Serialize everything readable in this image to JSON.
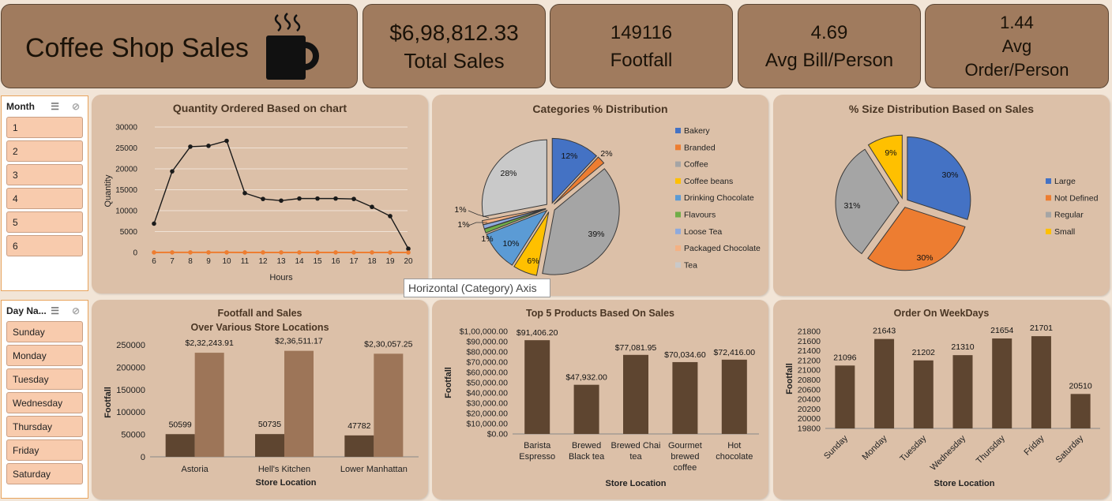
{
  "kpis": {
    "title": "Coffee Shop Sales",
    "cup_icon": "coffee-cup-icon",
    "total_sales_value": "$6,98,812.33",
    "total_sales_label": "Total Sales",
    "footfall_value": "149116",
    "footfall_label": "Footfall",
    "avg_bill_value": "4.69",
    "avg_bill_label": "Avg Bill/Person",
    "avg_order_value": "1.44",
    "avg_order_label1": "Avg",
    "avg_order_label2": "Order/Person"
  },
  "month_slicer": {
    "header": "Month",
    "items": [
      "1",
      "2",
      "3",
      "4",
      "5",
      "6"
    ]
  },
  "day_slicer": {
    "header": "Day Na...",
    "items": [
      "Sunday",
      "Monday",
      "Tuesday",
      "Wednesday",
      "Thursday",
      "Friday",
      "Saturday"
    ]
  },
  "tooltip": "Horizontal (Category) Axis",
  "colors": {
    "kpi_bg": "#a07b5e",
    "panel_bg": "#dcc0a8",
    "bar_dark": "#5e4530",
    "bar_light": "#9d7558",
    "line": "#1a1a1a",
    "line_orange": "#ed7d31"
  },
  "chart_data": [
    {
      "id": "quantity",
      "type": "line",
      "title": "Quantity Ordered Based on chart",
      "xlabel": "Hours",
      "ylabel": "Quantity",
      "ylim": [
        0,
        30000
      ],
      "yticks": [
        "0",
        "5000",
        "10000",
        "15000",
        "20000",
        "25000",
        "30000"
      ],
      "x": [
        6,
        7,
        8,
        9,
        10,
        11,
        12,
        13,
        14,
        15,
        16,
        17,
        18,
        19,
        20
      ],
      "series": [
        {
          "values": [
            6900,
            19400,
            25300,
            25500,
            26700,
            14200,
            12800,
            12400,
            12900,
            12900,
            12900,
            12800,
            10900,
            8700,
            900
          ]
        },
        {
          "values": [
            10,
            14,
            18,
            18,
            19,
            10,
            9,
            9,
            9,
            9,
            9,
            9,
            8,
            6,
            1
          ]
        }
      ]
    },
    {
      "id": "categories",
      "type": "pie",
      "title": "Categories % Distribution",
      "labels": [
        "Bakery",
        "Branded",
        "Coffee",
        "Coffee beans",
        "Drinking Chocolate",
        "Flavours",
        "Loose Tea",
        "Packaged Chocolate",
        "Tea"
      ],
      "values": [
        12,
        2,
        39,
        6,
        10,
        1,
        1,
        1,
        28
      ],
      "data_labels": [
        "12%",
        "2%",
        "39%",
        "6%",
        "10%",
        "1%",
        "1%",
        "1%",
        "28%"
      ],
      "colors": [
        "#4472c4",
        "#ed7d31",
        "#a5a5a5",
        "#ffc000",
        "#5b9bd5",
        "#70ad47",
        "#8faadc",
        "#f4b183",
        "#c9c9c9"
      ],
      "legend": "right"
    },
    {
      "id": "size",
      "type": "pie",
      "title": "% Size Distribution Based on Sales",
      "labels": [
        "Large",
        "Not Defined",
        "Regular",
        "Small"
      ],
      "values": [
        30,
        30,
        31,
        9
      ],
      "data_labels": [
        "30%",
        "30%",
        "31%",
        "9%"
      ],
      "colors": [
        "#4472c4",
        "#ed7d31",
        "#a5a5a5",
        "#ffc000"
      ],
      "legend": "right"
    },
    {
      "id": "footfall_sales",
      "type": "bar",
      "title": "Footfall and Sales",
      "subtitle": "Over Various Store Locations",
      "xlabel": "Store Location",
      "ylabel": "Footfall",
      "ylim": [
        0,
        250000
      ],
      "yticks": [
        "0",
        "50000",
        "100000",
        "150000",
        "200000",
        "250000"
      ],
      "categories": [
        "Astoria",
        "Hell's Kitchen",
        "Lower Manhattan"
      ],
      "series": [
        {
          "values": [
            50599,
            50735,
            47782
          ],
          "labels": [
            "50599",
            "50735",
            "47782"
          ]
        },
        {
          "values": [
            232243.91,
            236511.17,
            230057.25
          ],
          "labels": [
            "$2,32,243.91",
            "$2,36,511.17",
            "$2,30,057.25"
          ]
        }
      ]
    },
    {
      "id": "top5",
      "type": "bar",
      "title": "Top 5 Products Based On Sales",
      "xlabel": "Store Location",
      "ylabel": "Footfall",
      "ylim": [
        0,
        100000
      ],
      "yticks": [
        "$0.00",
        "$10,000.00",
        "$20,000.00",
        "$30,000.00",
        "$40,000.00",
        "$50,000.00",
        "$60,000.00",
        "$70,000.00",
        "$80,000.00",
        "$90,000.00",
        "$1,00,000.00"
      ],
      "categories": [
        [
          "Barista",
          "Espresso"
        ],
        [
          "Brewed",
          "Black tea"
        ],
        [
          "Brewed Chai",
          "tea"
        ],
        [
          "Gourmet",
          "brewed",
          "coffee"
        ],
        [
          "Hot",
          "chocolate"
        ]
      ],
      "values": [
        91406.2,
        47932.0,
        77081.95,
        70034.6,
        72416.0
      ],
      "data_labels": [
        "$91,406.20",
        "$47,932.00",
        "$77,081.95",
        "$70,034.60",
        "$72,416.00"
      ]
    },
    {
      "id": "weekdays",
      "type": "bar",
      "title": "Order On WeekDays",
      "xlabel": "Store Location",
      "ylabel": "Footfall",
      "ylim": [
        19800,
        21800
      ],
      "yticks": [
        "19800",
        "20000",
        "20200",
        "20400",
        "20600",
        "20800",
        "21000",
        "21200",
        "21400",
        "21600",
        "21800"
      ],
      "categories": [
        "Sunday",
        "Monday",
        "Tuesday",
        "Wednesday",
        "Thursday",
        "Friday",
        "Saturday"
      ],
      "values": [
        21096,
        21643,
        21202,
        21310,
        21654,
        21701,
        20510
      ],
      "data_labels": [
        "21096",
        "21643",
        "21202",
        "21310",
        "21654",
        "21701",
        "20510"
      ]
    }
  ]
}
